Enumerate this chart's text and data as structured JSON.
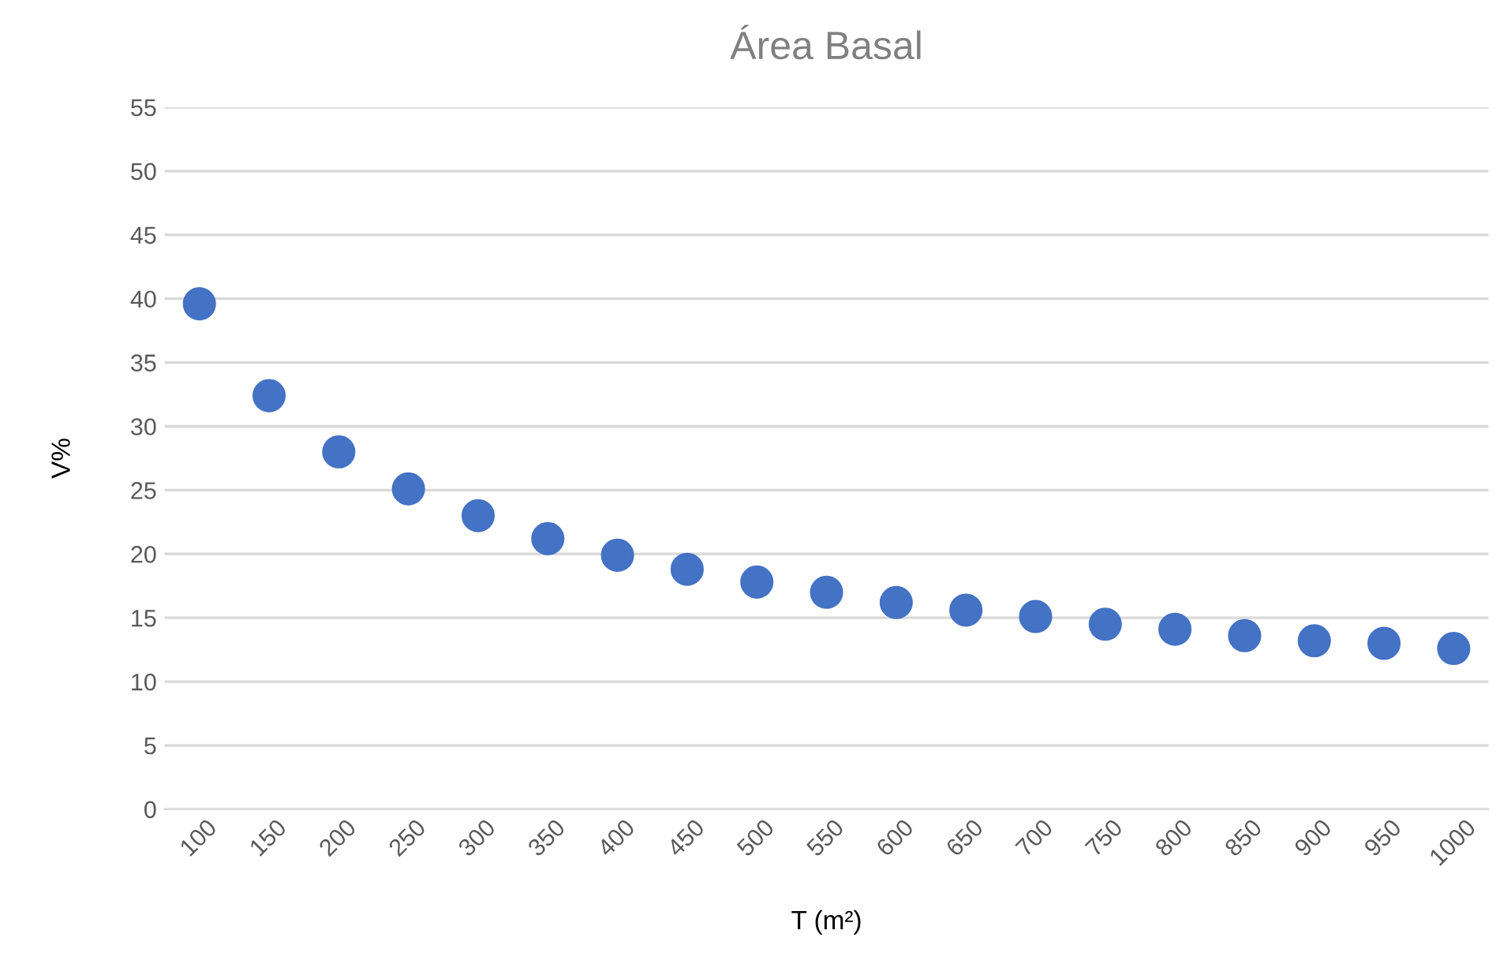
{
  "chart_data": {
    "type": "scatter",
    "title": "Área Basal",
    "xlabel": "T (m²)",
    "ylabel": "V%",
    "categories": [
      "100",
      "150",
      "200",
      "250",
      "300",
      "350",
      "400",
      "450",
      "500",
      "550",
      "600",
      "650",
      "700",
      "750",
      "800",
      "850",
      "900",
      "950",
      "1000"
    ],
    "series": [
      {
        "color": "#4472c4",
        "values": [
          39.6,
          32.4,
          28.0,
          25.1,
          23.0,
          21.2,
          19.9,
          18.8,
          17.8,
          17.0,
          16.2,
          15.6,
          15.1,
          14.5,
          14.1,
          13.6,
          13.2,
          13.0,
          12.6
        ]
      }
    ],
    "ylim": [
      0,
      55
    ],
    "yticks": [
      0,
      5,
      10,
      15,
      20,
      25,
      30,
      35,
      40,
      45,
      50,
      55
    ],
    "grid": "y",
    "legend": false,
    "marker": "circle"
  }
}
